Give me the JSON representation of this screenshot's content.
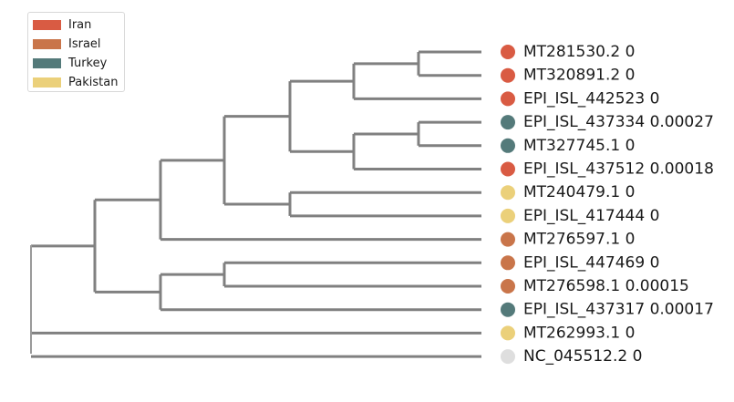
{
  "legend": {
    "items": [
      {
        "label": "Iran",
        "color": "#D95B43"
      },
      {
        "label": "Israel",
        "color": "#C9754A"
      },
      {
        "label": "Turkey",
        "color": "#547A7A"
      },
      {
        "label": "Pakistan",
        "color": "#EBD07A"
      }
    ]
  },
  "tree": {
    "branch_color": "#808080",
    "tips": [
      {
        "id": "MT281530.2",
        "value": "0",
        "label": "MT281530.2 0",
        "group": "Iran",
        "color": "#D95B43"
      },
      {
        "id": "MT320891.2",
        "value": "0",
        "label": "MT320891.2 0",
        "group": "Iran",
        "color": "#D95B43"
      },
      {
        "id": "EPI_ISL_442523",
        "value": "0",
        "label": "EPI_ISL_442523 0",
        "group": "Iran",
        "color": "#D95B43"
      },
      {
        "id": "EPI_ISL_437334",
        "value": "0.00027",
        "label": "EPI_ISL_437334 0.00027",
        "group": "Turkey",
        "color": "#547A7A"
      },
      {
        "id": "MT327745.1",
        "value": "0",
        "label": "MT327745.1 0",
        "group": "Turkey",
        "color": "#547A7A"
      },
      {
        "id": "EPI_ISL_437512",
        "value": "0.00018",
        "label": "EPI_ISL_437512 0.00018",
        "group": "Iran",
        "color": "#D95B43"
      },
      {
        "id": "MT240479.1",
        "value": "0",
        "label": "MT240479.1 0",
        "group": "Pakistan",
        "color": "#EBD07A"
      },
      {
        "id": "EPI_ISL_417444",
        "value": "0",
        "label": "EPI_ISL_417444 0",
        "group": "Pakistan",
        "color": "#EBD07A"
      },
      {
        "id": "MT276597.1",
        "value": "0",
        "label": "MT276597.1 0",
        "group": "Israel",
        "color": "#C9754A"
      },
      {
        "id": "EPI_ISL_447469",
        "value": "0",
        "label": "EPI_ISL_447469 0",
        "group": "Israel",
        "color": "#C9754A"
      },
      {
        "id": "MT276598.1",
        "value": "0.00015",
        "label": "MT276598.1 0.00015",
        "group": "Israel",
        "color": "#C9754A"
      },
      {
        "id": "EPI_ISL_437317",
        "value": "0.00017",
        "label": "EPI_ISL_437317 0.00017",
        "group": "Turkey",
        "color": "#547A7A"
      },
      {
        "id": "MT262993.1",
        "value": "0",
        "label": "MT262993.1 0",
        "group": "Pakistan",
        "color": "#EBD07A"
      },
      {
        "id": "NC_045512.2",
        "value": "0",
        "label": "NC_045512.2 0",
        "group": "",
        "color": "#DEDEDE"
      }
    ],
    "topology": [
      [
        [
          [
            [
              [
                "MT281530.2",
                "MT320891.2"
              ],
              "EPI_ISL_442523"
            ],
            [
              [
                "EPI_ISL_437334",
                "MT327745.1"
              ],
              "EPI_ISL_437512"
            ]
          ],
          [
            "MT240479.1",
            "EPI_ISL_417444"
          ]
        ],
        "MT276597.1"
      ],
      [
        [
          [
            "EPI_ISL_447469",
            "MT276598.1"
          ],
          "EPI_ISL_437317"
        ]
      ],
      "MT262993.1",
      "NC_045512.2"
    ]
  }
}
